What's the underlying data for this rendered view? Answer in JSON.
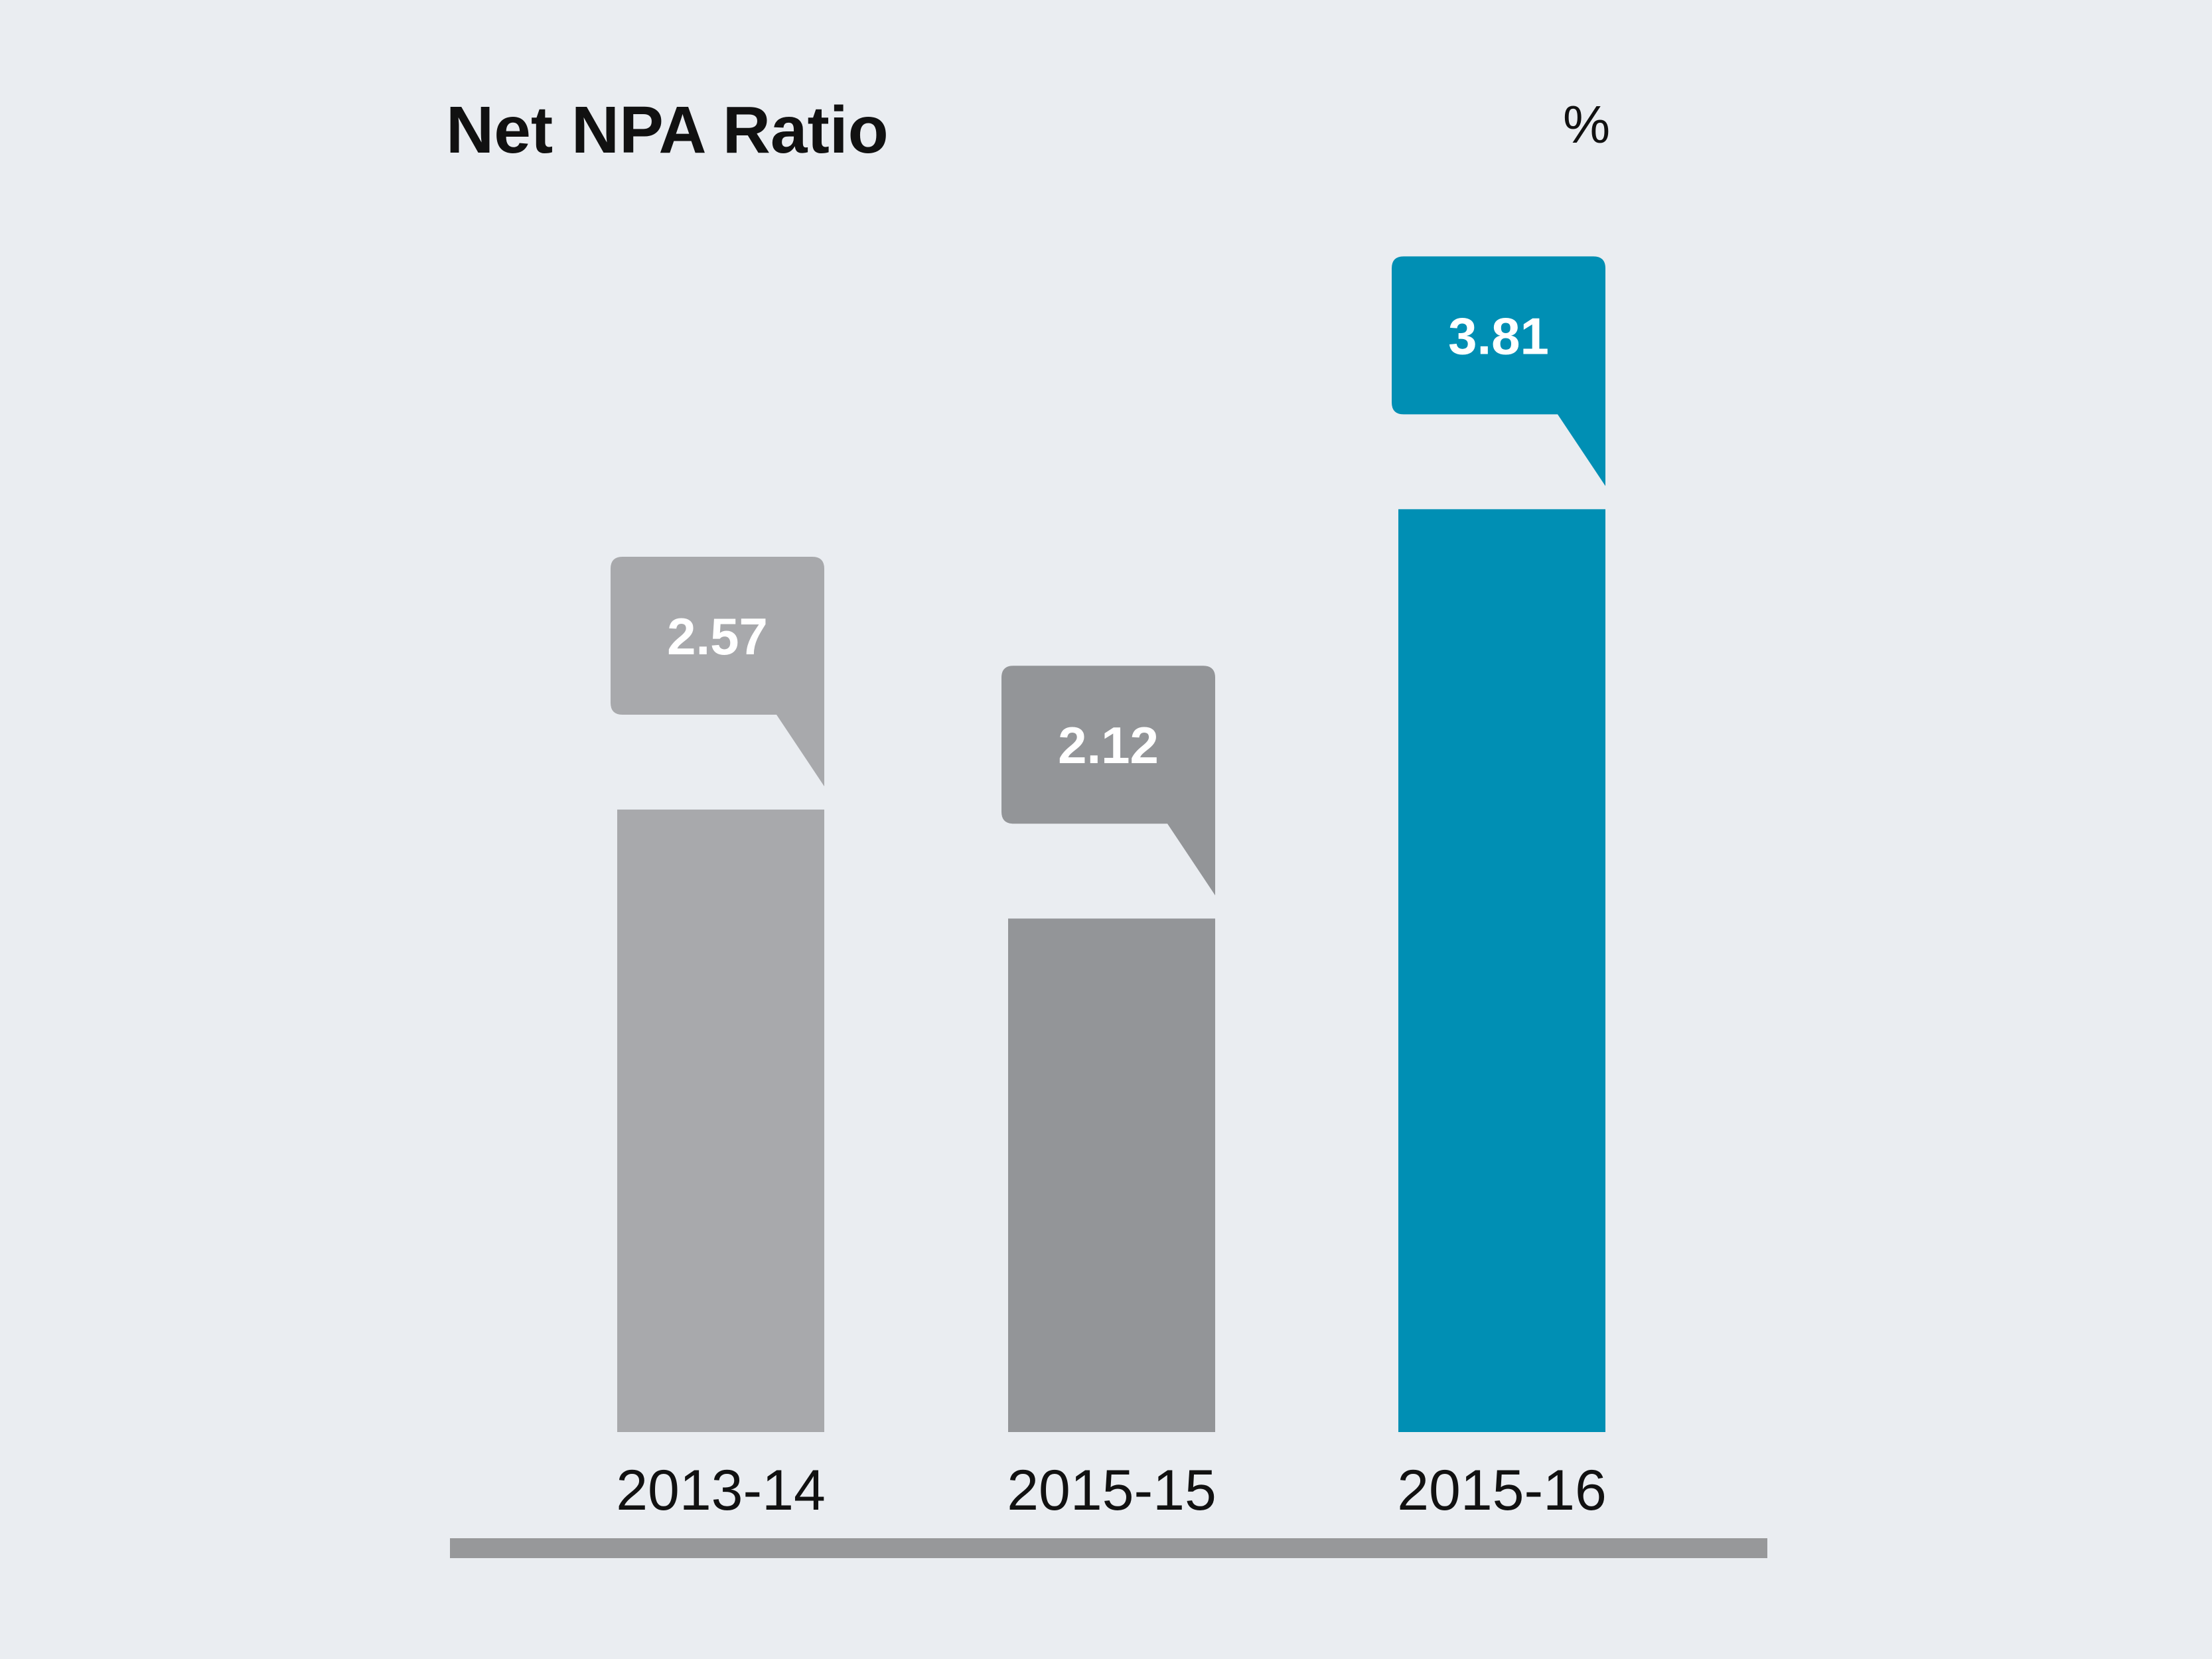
{
  "chart_data": {
    "type": "bar",
    "title": "Net NPA Ratio",
    "unit": "%",
    "categories": [
      "2013-14",
      "2015-15",
      "2015-16"
    ],
    "values": [
      2.57,
      2.12,
      3.81
    ],
    "value_labels": [
      "2.57",
      "2.12",
      "3.81"
    ],
    "xlabel": "",
    "ylabel": "",
    "grid": false,
    "legend": "none",
    "colors": {
      "bars": [
        "#a8a9ac",
        "#939598",
        "#008fb4"
      ],
      "baseline": "#97989a",
      "background": "#eaedf1"
    }
  }
}
